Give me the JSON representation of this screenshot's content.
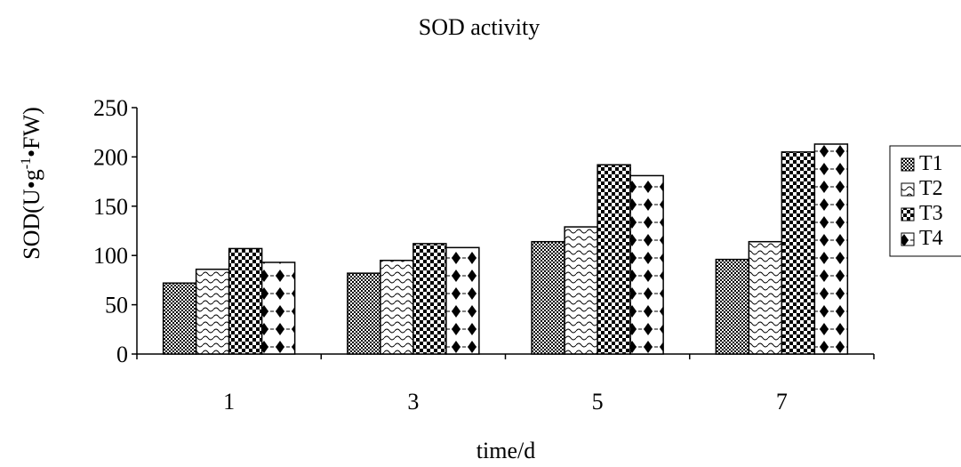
{
  "chart_data": {
    "type": "bar",
    "title": "SOD activity",
    "xlabel": "time/d",
    "ylabel": "SOD(U•g⁻¹•FW)",
    "ylabel_parts": {
      "pre": "SOD(U•g",
      "sup": "-1",
      "post": "•FW)"
    },
    "categories": [
      "1",
      "3",
      "5",
      "7"
    ],
    "ylim": [
      0,
      250
    ],
    "yticks": [
      "0",
      "50",
      "100",
      "150",
      "200",
      "250"
    ],
    "grid": false,
    "legend_position": "right",
    "series": [
      {
        "name": "T1",
        "values": [
          72,
          82,
          114,
          96
        ],
        "pattern": "checker-fine"
      },
      {
        "name": "T2",
        "values": [
          86,
          95,
          129,
          114
        ],
        "pattern": "wave"
      },
      {
        "name": "T3",
        "values": [
          107,
          112,
          192,
          205
        ],
        "pattern": "checker-bold"
      },
      {
        "name": "T4",
        "values": [
          93,
          108,
          181,
          213
        ],
        "pattern": "diamonds"
      }
    ]
  }
}
